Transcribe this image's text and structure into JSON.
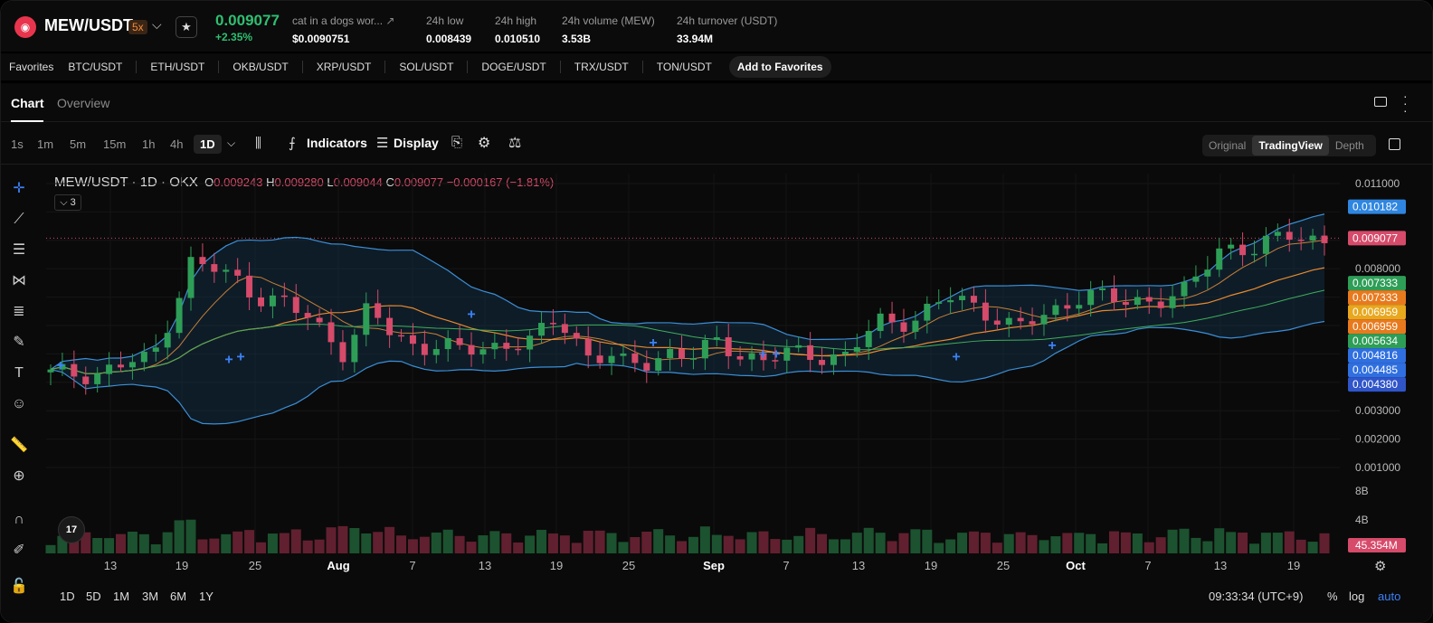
{
  "header": {
    "logo_text": "◉",
    "pair": "MEW/USDT",
    "leverage": "5x",
    "last_price": "0.009077",
    "change": "+2.35%",
    "stats": [
      {
        "label": "cat in a dogs wor...",
        "value": "$0.0090751"
      },
      {
        "label": "24h low",
        "value": "0.008439"
      },
      {
        "label": "24h high",
        "value": "0.010510"
      },
      {
        "label": "24h volume (MEW)",
        "value": "3.53B"
      },
      {
        "label": "24h turnover (USDT)",
        "value": "33.94M"
      }
    ]
  },
  "favorites": {
    "label": "Favorites",
    "items": [
      "BTC/USDT",
      "ETH/USDT",
      "OKB/USDT",
      "XRP/USDT",
      "SOL/USDT",
      "DOGE/USDT",
      "TRX/USDT",
      "TON/USDT"
    ],
    "add_label": "Add to Favorites"
  },
  "tabs": {
    "chart": "Chart",
    "overview": "Overview"
  },
  "timeframes": [
    "1s",
    "1m",
    "5m",
    "15m",
    "1h",
    "4h",
    "1D"
  ],
  "toolbar": {
    "indicators": "Indicators",
    "display": "Display"
  },
  "modes": [
    "Original",
    "TradingView",
    "Depth"
  ],
  "legend": {
    "title": "MEW/USDT · 1D · OKX",
    "o_label": "O",
    "o": "0.009243",
    "h_label": "H",
    "h": "0.009280",
    "l_label": "L",
    "l": "0.009044",
    "c_label": "C",
    "c": "0.009077",
    "chg": "−0.000167 (−1.81%)",
    "indicator_count": "3"
  },
  "tw_logo": "17",
  "footer": {
    "ranges": [
      "1D",
      "5D",
      "1M",
      "3M",
      "6M",
      "1Y"
    ],
    "clock": "09:33:34 (UTC+9)",
    "pct": "%",
    "log": "log",
    "auto": "auto"
  },
  "colors": {
    "up": "#2e9e57",
    "down": "#d64a6a",
    "bb": "#3b8fd6",
    "ma_fast": "#f59a3a",
    "ma_slow": "#3fae5a",
    "accent": "#3b82f6"
  },
  "chart_data": {
    "type": "candlestick",
    "y_axis_ticks": [
      "0.011000",
      "0.010182",
      "0.009077",
      "0.008000",
      "0.007333",
      "0.007333",
      "0.006959",
      "0.006959",
      "0.005634",
      "0.004816",
      "0.004485",
      "0.004380",
      "0.003000",
      "0.002000",
      "0.001000"
    ],
    "y_tick_values": [
      0.011,
      0.010182,
      0.009077,
      0.008,
      0.007333,
      0.007333,
      0.006959,
      0.006959,
      0.005634,
      0.004816,
      0.004485,
      0.00438,
      0.003,
      0.002,
      0.001
    ],
    "y_tick_colors": [
      "",
      "#2f86e0",
      "#d64a6a",
      "",
      "#2e9e57",
      "#e87a1e",
      "#e8a81e",
      "#e87a1e",
      "#2e9e57",
      "#2f6fe0",
      "#2f6fe0",
      "#2f55c9",
      "",
      "",
      ""
    ],
    "x_labels": [
      "13",
      "19",
      "25",
      "Aug",
      "7",
      "13",
      "19",
      "25",
      "Sep",
      "7",
      "13",
      "19",
      "25",
      "Oct",
      "7",
      "13",
      "19"
    ],
    "volume_axis": [
      "8B",
      "4B"
    ],
    "volume_last": "45.354M",
    "ylim": [
      0.0005,
      0.0115
    ]
  }
}
